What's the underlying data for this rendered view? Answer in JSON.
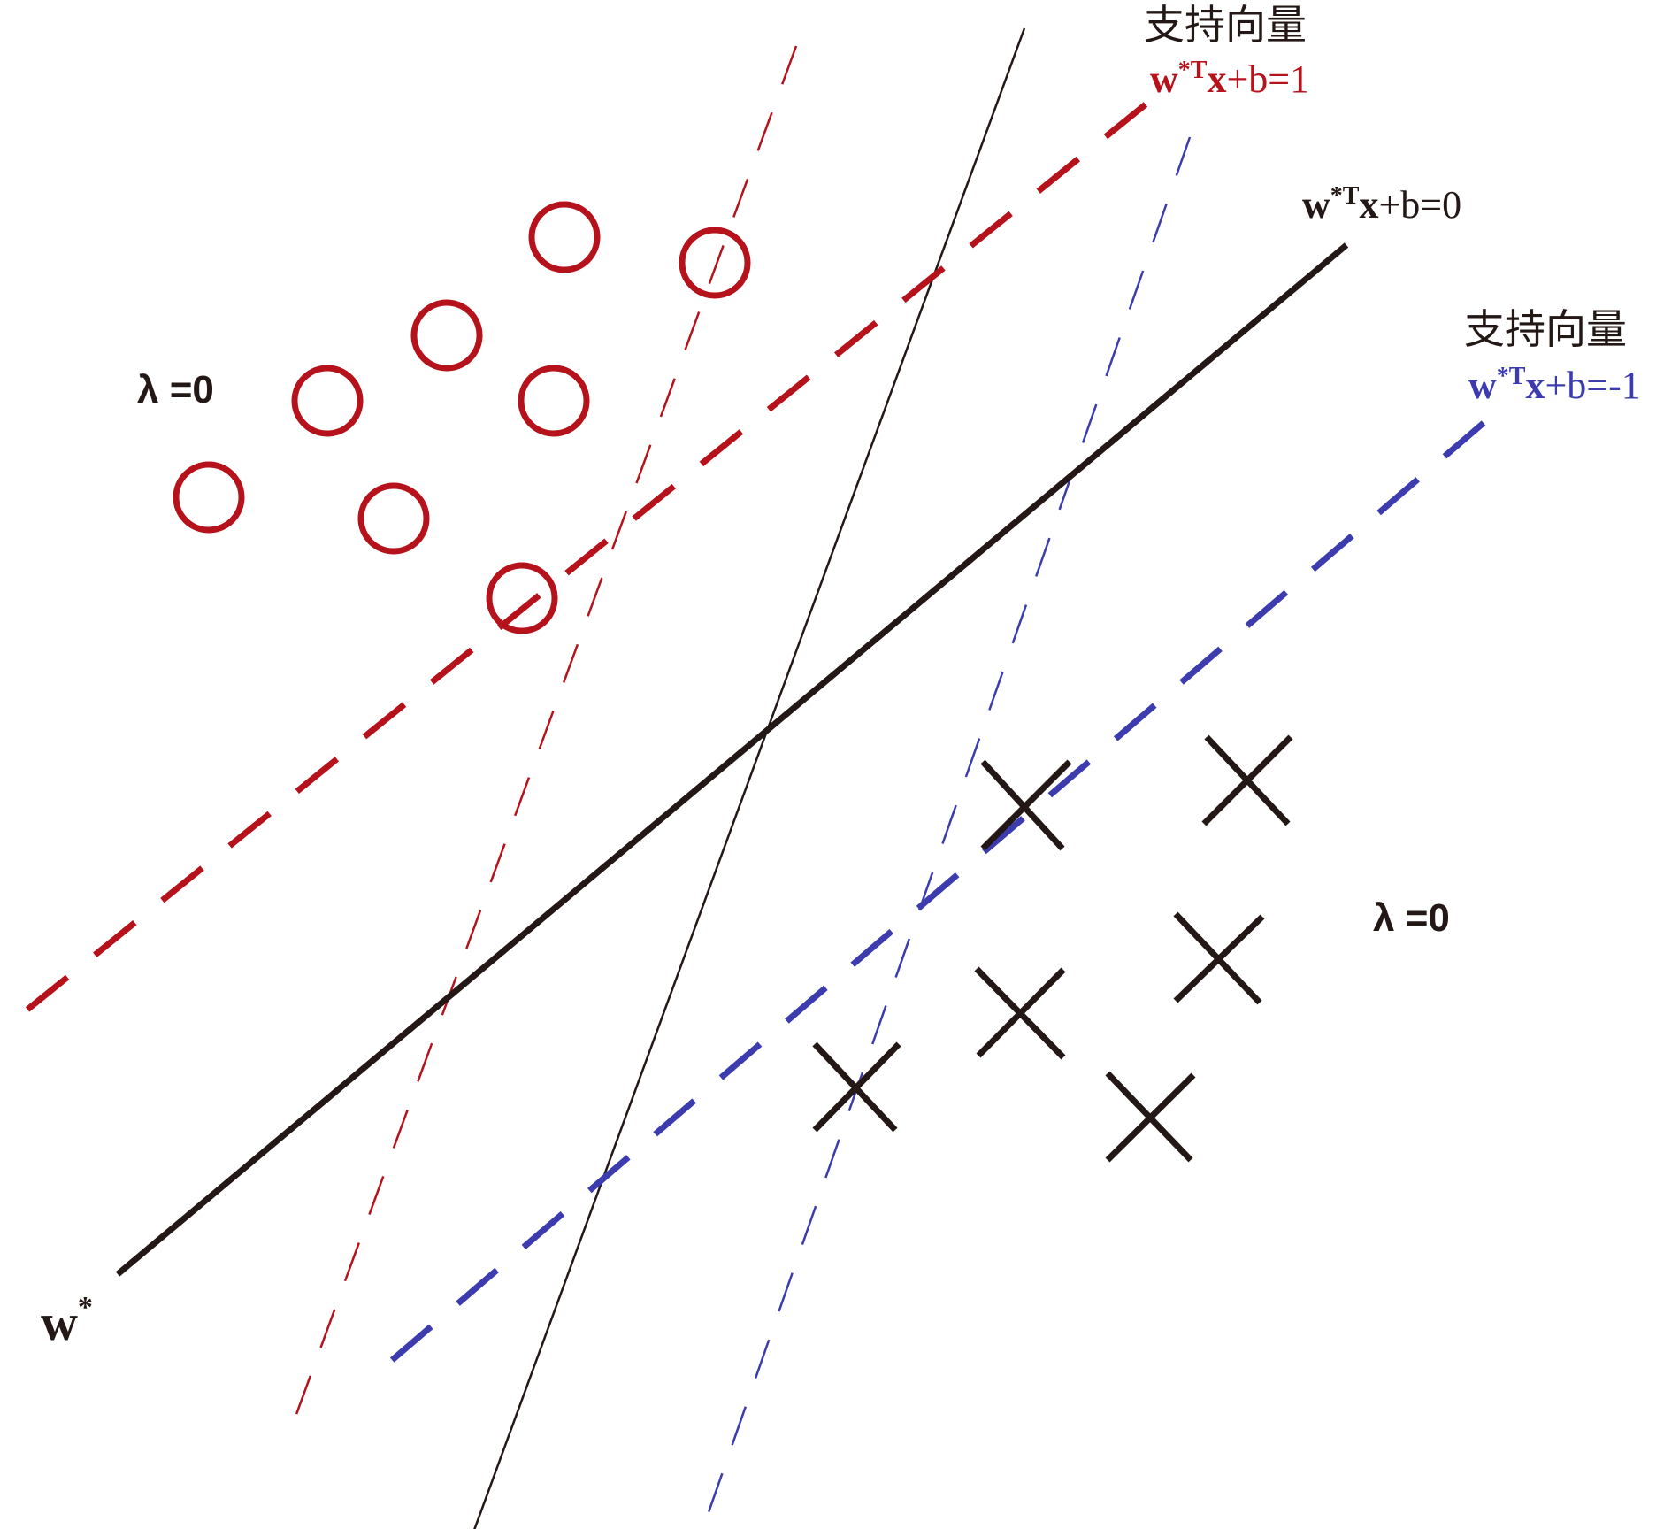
{
  "colors": {
    "red": "#B5121B",
    "blue": "#3C3CAF",
    "black": "#231815"
  },
  "labels": {
    "support_vector_top": "支持向量",
    "support_vector_right": "支持向量",
    "eq_positive": {
      "w": "w",
      "sup": "*T",
      "x": "x",
      "rest": "+b=1"
    },
    "eq_hyperplane": {
      "w": "w",
      "sup": "*T",
      "x": "x",
      "rest": "+b=0"
    },
    "eq_negative": {
      "w": "w",
      "sup": "*T",
      "x": "x",
      "rest": "+b=-1"
    },
    "lambda_top_left": "λ =0",
    "lambda_right": "λ =0",
    "w_star": {
      "w": "w",
      "sup": "*"
    }
  },
  "points": {
    "positive_class": "circle",
    "negative_class": "cross"
  }
}
